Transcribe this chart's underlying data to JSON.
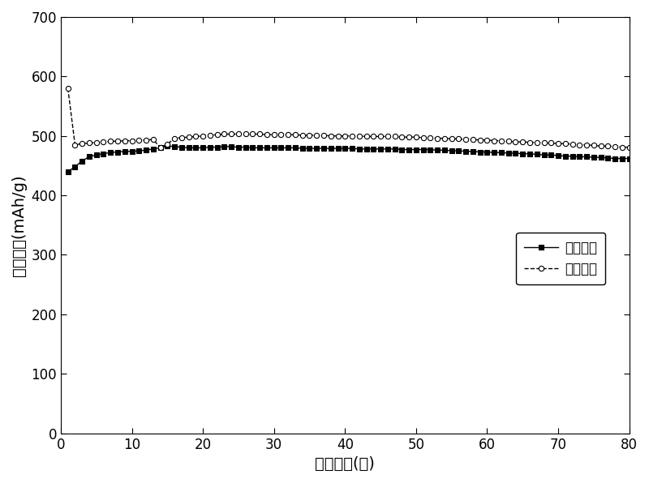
{
  "discharge_x": [
    1,
    2,
    3,
    4,
    5,
    6,
    7,
    8,
    9,
    10,
    11,
    12,
    13,
    14,
    15,
    16,
    17,
    18,
    19,
    20,
    21,
    22,
    23,
    24,
    25,
    26,
    27,
    28,
    29,
    30,
    31,
    32,
    33,
    34,
    35,
    36,
    37,
    38,
    39,
    40,
    41,
    42,
    43,
    44,
    45,
    46,
    47,
    48,
    49,
    50,
    51,
    52,
    53,
    54,
    55,
    56,
    57,
    58,
    59,
    60,
    61,
    62,
    63,
    64,
    65,
    66,
    67,
    68,
    69,
    70,
    71,
    72,
    73,
    74,
    75,
    76,
    77,
    78,
    79,
    80
  ],
  "discharge_y": [
    440,
    448,
    458,
    465,
    468,
    470,
    472,
    473,
    474,
    474,
    475,
    476,
    478,
    480,
    483,
    482,
    481,
    480,
    480,
    480,
    481,
    481,
    482,
    482,
    481,
    481,
    480,
    480,
    480,
    480,
    480,
    480,
    480,
    479,
    479,
    479,
    479,
    479,
    479,
    479,
    479,
    478,
    478,
    478,
    478,
    478,
    478,
    477,
    477,
    477,
    477,
    477,
    476,
    476,
    475,
    475,
    474,
    474,
    473,
    473,
    472,
    472,
    471,
    471,
    470,
    470,
    469,
    468,
    468,
    467,
    466,
    466,
    465,
    465,
    464,
    464,
    463,
    462,
    462,
    462
  ],
  "charge_x": [
    1,
    2,
    3,
    4,
    5,
    6,
    7,
    8,
    9,
    10,
    11,
    12,
    13,
    14,
    15,
    16,
    17,
    18,
    19,
    20,
    21,
    22,
    23,
    24,
    25,
    26,
    27,
    28,
    29,
    30,
    31,
    32,
    33,
    34,
    35,
    36,
    37,
    38,
    39,
    40,
    41,
    42,
    43,
    44,
    45,
    46,
    47,
    48,
    49,
    50,
    51,
    52,
    53,
    54,
    55,
    56,
    57,
    58,
    59,
    60,
    61,
    62,
    63,
    64,
    65,
    66,
    67,
    68,
    69,
    70,
    71,
    72,
    73,
    74,
    75,
    76,
    77,
    78,
    79,
    80
  ],
  "charge_y": [
    580,
    485,
    487,
    488,
    489,
    490,
    491,
    491,
    492,
    492,
    493,
    493,
    494,
    480,
    486,
    496,
    497,
    498,
    499,
    500,
    501,
    502,
    503,
    503,
    503,
    503,
    503,
    503,
    502,
    502,
    502,
    502,
    502,
    501,
    501,
    501,
    501,
    500,
    500,
    500,
    500,
    500,
    499,
    499,
    499,
    499,
    499,
    498,
    498,
    498,
    497,
    497,
    496,
    496,
    495,
    495,
    494,
    494,
    493,
    493,
    492,
    492,
    491,
    490,
    490,
    489,
    489,
    488,
    488,
    487,
    487,
    486,
    485,
    485,
    484,
    483,
    483,
    482,
    481,
    481
  ],
  "xlabel": "循环次数(周)",
  "ylabel": "克比容量(mAh/g)",
  "xlim": [
    0,
    80
  ],
  "ylim": [
    0,
    700
  ],
  "xticks": [
    0,
    10,
    20,
    30,
    40,
    50,
    60,
    70,
    80
  ],
  "yticks": [
    0,
    100,
    200,
    300,
    400,
    500,
    600,
    700
  ],
  "legend_discharge": "放电曲线",
  "legend_charge": "充电曲线",
  "line_color": "#000000",
  "bg_color": "#ffffff",
  "fontsize_label": 14,
  "fontsize_tick": 12,
  "fontsize_legend": 12
}
